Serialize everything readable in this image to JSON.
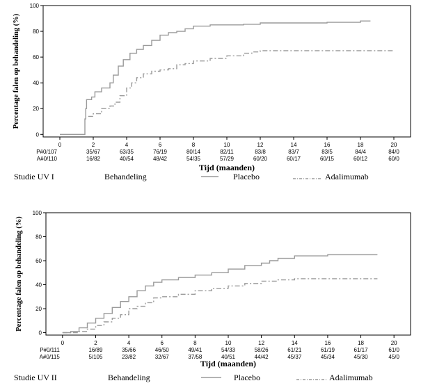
{
  "chart_data": [
    {
      "type": "line",
      "ylabel": "Percentage falen op behandeling (%)",
      "xlabel": "Tijd (maanden)",
      "xlim": [
        -1,
        21
      ],
      "ylim": [
        -2,
        100
      ],
      "x_ticks": [
        "0",
        "2",
        "4",
        "6",
        "8",
        "10",
        "12",
        "14",
        "16",
        "18",
        "20"
      ],
      "y_ticks": [
        "0",
        "20",
        "40",
        "60",
        "80",
        "100"
      ],
      "risk_table": {
        "rows": [
          {
            "label": "P#0/107",
            "values": [
              "35/67",
              "63/35",
              "76/19",
              "80/14",
              "82/11",
              "83/8",
              "83/7",
              "83/5",
              "84/4",
              "84/0"
            ]
          },
          {
            "label": "A#0/110",
            "values": [
              "16/82",
              "40/54",
              "48/42",
              "54/35",
              "57/29",
              "60/20",
              "60/17",
              "60/15",
              "60/12",
              "60/0"
            ]
          }
        ]
      },
      "legend": {
        "study": "Studie UV I",
        "title": "Behandeling",
        "entries": [
          "Placebo",
          "Adalimumab"
        ]
      },
      "series": [
        {
          "name": "Placebo",
          "color": "#9a9a9a",
          "style": "solid",
          "points": [
            [
              0,
              0
            ],
            [
              1.5,
              0
            ],
            [
              1.5,
              12
            ],
            [
              1.55,
              20
            ],
            [
              1.6,
              27
            ],
            [
              1.9,
              29
            ],
            [
              2.1,
              33
            ],
            [
              2.5,
              36
            ],
            [
              3,
              40
            ],
            [
              3.2,
              46
            ],
            [
              3.5,
              53
            ],
            [
              3.8,
              58
            ],
            [
              4.2,
              63
            ],
            [
              4.6,
              66
            ],
            [
              5,
              69
            ],
            [
              5.5,
              73
            ],
            [
              6,
              77
            ],
            [
              6.5,
              79
            ],
            [
              7,
              80
            ],
            [
              7.5,
              82
            ],
            [
              8,
              84
            ],
            [
              9,
              85
            ],
            [
              10,
              85
            ],
            [
              11,
              85.5
            ],
            [
              12,
              86.5
            ],
            [
              14,
              86.5
            ],
            [
              16,
              87
            ],
            [
              17,
              87
            ],
            [
              18,
              88
            ],
            [
              18.6,
              88
            ]
          ]
        },
        {
          "name": "Adalimumab",
          "color": "#9a9a9a",
          "style": "dashdot",
          "points": [
            [
              1.7,
              14
            ],
            [
              2,
              16
            ],
            [
              2.5,
              20
            ],
            [
              3,
              22
            ],
            [
              3.3,
              25
            ],
            [
              3.6,
              30
            ],
            [
              4,
              36
            ],
            [
              4.3,
              40
            ],
            [
              4.6,
              44
            ],
            [
              5,
              47
            ],
            [
              5.5,
              49
            ],
            [
              6,
              50
            ],
            [
              6.5,
              51
            ],
            [
              7,
              54
            ],
            [
              7.5,
              55
            ],
            [
              8,
              57
            ],
            [
              9,
              59
            ],
            [
              10,
              61
            ],
            [
              11,
              63
            ],
            [
              11.5,
              64
            ],
            [
              12,
              65
            ],
            [
              14,
              65
            ],
            [
              16,
              65
            ],
            [
              18,
              65
            ],
            [
              20,
              65
            ]
          ]
        }
      ]
    },
    {
      "type": "line",
      "ylabel": "Percentage falen op behandeling (%)",
      "xlabel": "Tijd (maanden)",
      "xlim": [
        -1,
        21
      ],
      "ylim": [
        -2,
        100
      ],
      "x_ticks": [
        "0",
        "2",
        "4",
        "6",
        "8",
        "10",
        "12",
        "14",
        "16",
        "18",
        "20"
      ],
      "y_ticks": [
        "0",
        "20",
        "40",
        "60",
        "80",
        "100"
      ],
      "risk_table": {
        "rows": [
          {
            "label": "P#0/111",
            "values": [
              "16/89",
              "35/66",
              "46/50",
              "49/41",
              "54/33",
              "58/26",
              "61/21",
              "61/19",
              "61/17",
              "61/0"
            ]
          },
          {
            "label": "A#0/115",
            "values": [
              "5/105",
              "23/82",
              "32/67",
              "37/58",
              "40/51",
              "44/42",
              "45/37",
              "45/34",
              "45/30",
              "45/0"
            ]
          }
        ]
      },
      "legend": {
        "study": "Studie UV II",
        "title": "Behandeling",
        "entries": [
          "Placebo",
          "Adalimumab"
        ]
      },
      "series": [
        {
          "name": "Placebo",
          "color": "#9a9a9a",
          "style": "solid",
          "points": [
            [
              0,
              0
            ],
            [
              0.5,
              1
            ],
            [
              1,
              4
            ],
            [
              1.5,
              8
            ],
            [
              2,
              12
            ],
            [
              2.5,
              16
            ],
            [
              3,
              21
            ],
            [
              3.5,
              26
            ],
            [
              4,
              30
            ],
            [
              4.5,
              35
            ],
            [
              5,
              39
            ],
            [
              5.5,
              42
            ],
            [
              6,
              44
            ],
            [
              7,
              46
            ],
            [
              8,
              48
            ],
            [
              9,
              50
            ],
            [
              10,
              53
            ],
            [
              11,
              56
            ],
            [
              12,
              58
            ],
            [
              12.5,
              60
            ],
            [
              13,
              62
            ],
            [
              14,
              64
            ],
            [
              16,
              65
            ],
            [
              18,
              65
            ],
            [
              19,
              65
            ]
          ]
        },
        {
          "name": "Adalimumab",
          "color": "#9a9a9a",
          "style": "dashdot",
          "points": [
            [
              0,
              0
            ],
            [
              0.5,
              0
            ],
            [
              1,
              1
            ],
            [
              1.5,
              3
            ],
            [
              2,
              6
            ],
            [
              2.5,
              9
            ],
            [
              3,
              12
            ],
            [
              3.5,
              15
            ],
            [
              4,
              20
            ],
            [
              4.5,
              22
            ],
            [
              5,
              25
            ],
            [
              5.5,
              29
            ],
            [
              6,
              30
            ],
            [
              7,
              32
            ],
            [
              8,
              35
            ],
            [
              9,
              37
            ],
            [
              10,
              39
            ],
            [
              11,
              41
            ],
            [
              12,
              43
            ],
            [
              13,
              44
            ],
            [
              14,
              45
            ],
            [
              16,
              45
            ],
            [
              18,
              45
            ],
            [
              19,
              45
            ]
          ]
        }
      ]
    }
  ]
}
